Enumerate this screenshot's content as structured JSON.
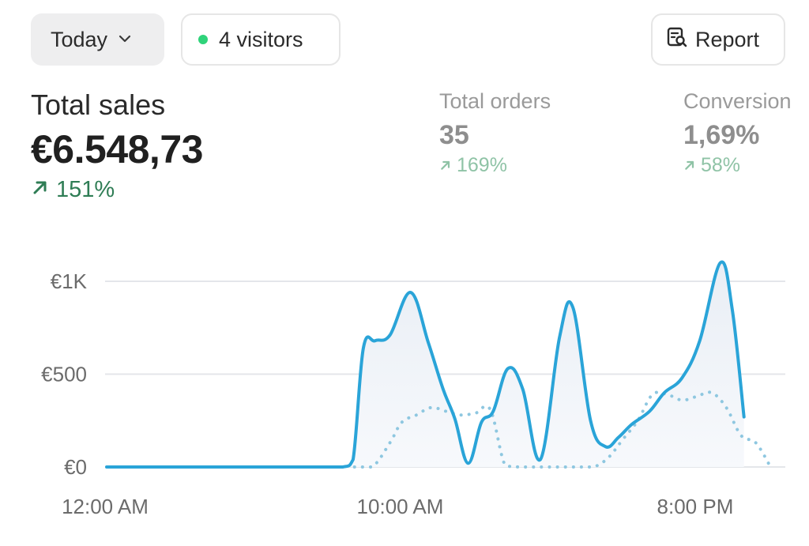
{
  "toolbar": {
    "range_label": "Today",
    "visitors_label": "4 visitors",
    "report_label": "Report",
    "icons": {
      "range": "chevron-down-icon",
      "visitors": "live-dot-icon",
      "report": "report-search-icon"
    },
    "live_color": "#2fd37a"
  },
  "metrics": {
    "total_sales": {
      "label": "Total sales",
      "value": "€6.548,73",
      "delta": "151%"
    },
    "total_orders": {
      "label": "Total orders",
      "value": "35",
      "delta": "169%"
    },
    "conversion": {
      "label": "Conversion",
      "value": "1,69%",
      "delta": "58%"
    }
  },
  "chart_data": {
    "type": "line",
    "x_labels": [
      "12:00 AM",
      "10:00 AM",
      "8:00 PM"
    ],
    "y_labels": [
      "€1K",
      "€500",
      "€0"
    ],
    "ylim": [
      0,
      1000
    ],
    "xlim": [
      0,
      23
    ],
    "grid": true,
    "series": [
      {
        "style": "solid",
        "color": "#2aa4d8",
        "x": [
          0,
          1,
          2,
          3,
          4,
          5,
          6,
          7,
          8,
          8.35,
          8.7,
          9.1,
          9.6,
          10.3,
          10.9,
          11.4,
          11.8,
          12.25,
          12.7,
          13.1,
          13.6,
          14.1,
          14.7,
          15.35,
          15.8,
          16.4,
          16.9,
          17.35,
          17.8,
          18.4,
          18.9,
          19.5,
          20.1,
          20.8,
          21.2,
          21.6
        ],
        "y": [
          0,
          0,
          0,
          0,
          0,
          0,
          0,
          0,
          0,
          40,
          640,
          680,
          710,
          940,
          670,
          420,
          260,
          20,
          240,
          300,
          530,
          420,
          40,
          700,
          860,
          250,
          110,
          160,
          230,
          300,
          400,
          480,
          680,
          1100,
          850,
          270
        ]
      },
      {
        "style": "dotted",
        "color": "#8ec7e0",
        "x": [
          8.4,
          9,
          9.6,
          10,
          10.5,
          11,
          11.5,
          12,
          12.5,
          13,
          13.5,
          14,
          15,
          16,
          16.5,
          17,
          17.5,
          18,
          18.5,
          19,
          19.5,
          20,
          20.5,
          21,
          21.5,
          22,
          22.5
        ],
        "y": [
          0,
          0,
          130,
          240,
          280,
          320,
          300,
          280,
          290,
          310,
          10,
          0,
          0,
          0,
          0,
          50,
          150,
          250,
          390,
          390,
          360,
          380,
          400,
          320,
          170,
          130,
          0
        ]
      }
    ]
  }
}
